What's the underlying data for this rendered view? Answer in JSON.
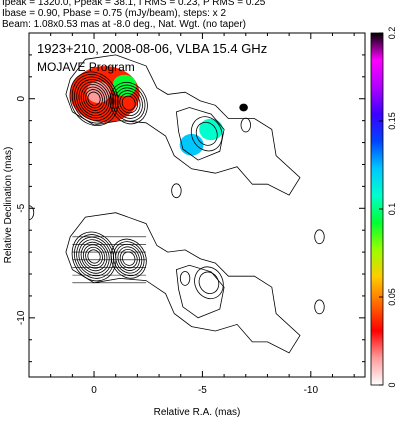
{
  "header": {
    "line1": "Ipeak = 1320.0, Ppeak = 38.1, I RMS = 0.23, P RMS = 0.25",
    "line2": "Ibase = 0.90, Pbase = 0.75 (mJy/beam), steps: x 2",
    "line3": "Beam: 1.08x0.53 mas at -8.0 deg., Nat. Wgt. (no taper)"
  },
  "chart_data": {
    "type": "contour",
    "title": "1923+210, 2008-08-06, VLBA 15.4 GHz",
    "subtitle": "MOJAVE Program",
    "xlabel": "Relative R.A. (mas)",
    "ylabel": "Relative Declination (mas)",
    "xlim": [
      3,
      -12.5
    ],
    "ylim": [
      -12.7,
      3.0
    ],
    "x_ticks": [
      0,
      -5,
      -10
    ],
    "y_ticks": [
      0,
      -5,
      -10
    ],
    "x_tick_labels": [
      "0",
      "-5",
      "-10"
    ],
    "y_tick_labels": [
      "0",
      "-5",
      "-10"
    ],
    "colorbar": {
      "min": 0,
      "max": 0.2,
      "ticks": [
        0,
        0.05,
        0.1,
        0.15,
        0.2
      ],
      "tick_labels": [
        "0",
        "0.05",
        "0.1",
        "0.15",
        "0.2"
      ],
      "colors": [
        "#ffffff",
        "#ff9a9a",
        "#ff0000",
        "#ff6a00",
        "#ffcc00",
        "#99ff00",
        "#00ff33",
        "#00ffcc",
        "#00c8ff",
        "#0044ff",
        "#3a00ff",
        "#b000ff",
        "#ff00ff",
        "#000000"
      ]
    },
    "upper_source": {
      "core": {
        "x": 0.0,
        "y": 0.0,
        "levels": 9
      },
      "jet_knots": [
        {
          "x": -1.6,
          "y": -0.2,
          "levels": 6
        },
        {
          "x": -5.2,
          "y": -1.6,
          "levels": 2
        }
      ],
      "polarization_peaks": [
        {
          "x": -0.2,
          "y": 0.3,
          "value": 0.015
        },
        {
          "x": -1.4,
          "y": 0.6,
          "value": 0.09
        },
        {
          "x": -5.4,
          "y": -1.4,
          "value": 0.11
        },
        {
          "x": -4.5,
          "y": -2.1,
          "value": 0.13
        },
        {
          "x": -6.9,
          "y": -0.4,
          "value": 0.2
        }
      ]
    },
    "lower_source": {
      "core": {
        "x": 0.0,
        "y": -7.2,
        "levels": 8
      },
      "jet_knots": [
        {
          "x": -1.6,
          "y": -7.3,
          "levels": 6
        },
        {
          "x": -5.3,
          "y": -8.4,
          "levels": 2
        }
      ]
    },
    "beam": {
      "major": 1.08,
      "minor": 0.53,
      "pa_deg": -8.0
    }
  }
}
